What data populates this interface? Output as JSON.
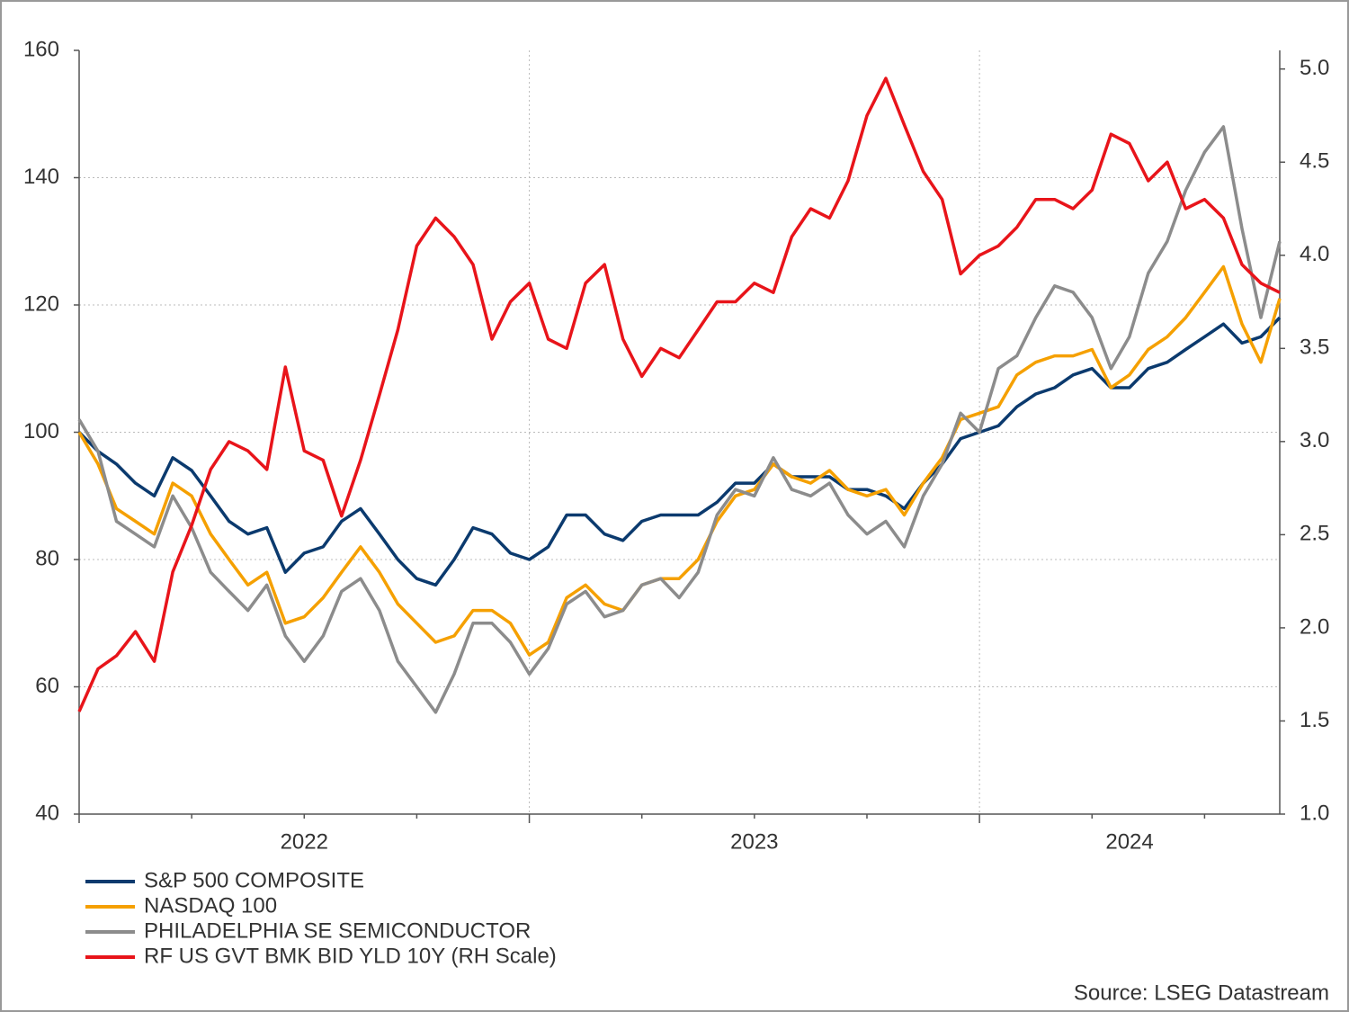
{
  "chart_data": {
    "type": "line",
    "x": [
      2022,
      2022.042,
      2022.083,
      2022.125,
      2022.167,
      2022.208,
      2022.25,
      2022.292,
      2022.333,
      2022.375,
      2022.417,
      2022.458,
      2022.5,
      2022.542,
      2022.583,
      2022.625,
      2022.667,
      2022.708,
      2022.75,
      2022.792,
      2022.833,
      2022.875,
      2022.917,
      2022.958,
      2023,
      2023.042,
      2023.083,
      2023.125,
      2023.167,
      2023.208,
      2023.25,
      2023.292,
      2023.333,
      2023.375,
      2023.417,
      2023.458,
      2023.5,
      2023.542,
      2023.583,
      2023.625,
      2023.667,
      2023.708,
      2023.75,
      2023.792,
      2023.833,
      2023.875,
      2023.917,
      2023.958,
      2024,
      2024.042,
      2024.083,
      2024.125,
      2024.167,
      2024.208,
      2024.25,
      2024.292,
      2024.333,
      2024.375,
      2024.417,
      2024.458,
      2024.5,
      2024.542,
      2024.583,
      2024.625,
      2024.667
    ],
    "xlim": [
      2022,
      2024.667
    ],
    "xticks": [
      {
        "value": 2022,
        "label": "2022"
      },
      {
        "value": 2023,
        "label": "2023"
      },
      {
        "value": 2024,
        "label": "2024"
      }
    ],
    "xminorticks": [
      2022.25,
      2022.5,
      2022.75,
      2023.25,
      2023.5,
      2023.75,
      2024.25,
      2024.5
    ],
    "ylim": [
      40,
      160
    ],
    "yticks": [
      40,
      60,
      80,
      100,
      120,
      140,
      160
    ],
    "y2lim": [
      1.0,
      5.1
    ],
    "y2ticks": [
      {
        "value": 1,
        "label": "1.0"
      },
      1.5,
      {
        "value": 2,
        "label": "2.0"
      },
      2.5,
      {
        "value": 3,
        "label": "3.0"
      },
      3.5,
      {
        "value": 4,
        "label": "4.0"
      },
      4.5,
      {
        "value": 5,
        "label": "5.0"
      }
    ],
    "grid": true,
    "series": [
      {
        "name": "S&P 500 COMPOSITE",
        "color": "#0b3a6e",
        "values": [
          100,
          97,
          95,
          92,
          90,
          96,
          94,
          90,
          86,
          84,
          85,
          78,
          81,
          82,
          86,
          88,
          84,
          80,
          77,
          76,
          80,
          85,
          84,
          81,
          80,
          82,
          87,
          87,
          84,
          83,
          86,
          87,
          87,
          87,
          89,
          92,
          92,
          95,
          93,
          93,
          93,
          91,
          91,
          90,
          88,
          92,
          95,
          99,
          100,
          101,
          104,
          106,
          107,
          109,
          110,
          107,
          107,
          110,
          111,
          113,
          115,
          117,
          114,
          115,
          118
        ]
      },
      {
        "name": "NASDAQ 100",
        "color": "#f5a000",
        "values": [
          100,
          95,
          88,
          86,
          84,
          92,
          90,
          84,
          80,
          76,
          78,
          70,
          71,
          74,
          78,
          82,
          78,
          73,
          70,
          67,
          68,
          72,
          72,
          70,
          65,
          67,
          74,
          76,
          73,
          72,
          76,
          77,
          77,
          80,
          86,
          90,
          91,
          95,
          93,
          92,
          94,
          91,
          90,
          91,
          87,
          92,
          96,
          102,
          103,
          104,
          109,
          111,
          112,
          112,
          113,
          107,
          109,
          113,
          115,
          118,
          122,
          126,
          117,
          111,
          121
        ]
      },
      {
        "name": "PHILADELPHIA SE SEMICONDUCTOR",
        "color": "#8c8c8c",
        "values": [
          102,
          97,
          86,
          84,
          82,
          90,
          85,
          78,
          75,
          72,
          76,
          68,
          64,
          68,
          75,
          77,
          72,
          64,
          60,
          56,
          62,
          70,
          70,
          67,
          62,
          66,
          73,
          75,
          71,
          72,
          76,
          77,
          74,
          78,
          87,
          91,
          90,
          96,
          91,
          90,
          92,
          87,
          84,
          86,
          82,
          90,
          95,
          103,
          100,
          110,
          112,
          118,
          123,
          122,
          118,
          110,
          115,
          125,
          130,
          138,
          144,
          148,
          132,
          118,
          130
        ]
      },
      {
        "name": "RF US GVT BMK BID YLD 10Y (RH Scale)",
        "color": "#e8141a",
        "axis": "y2",
        "values": [
          1.55,
          1.78,
          1.85,
          1.98,
          1.82,
          2.3,
          2.55,
          2.85,
          3.0,
          2.95,
          2.85,
          3.4,
          2.95,
          2.9,
          2.6,
          2.9,
          3.25,
          3.6,
          4.05,
          4.2,
          4.1,
          3.95,
          3.55,
          3.75,
          3.85,
          3.55,
          3.5,
          3.85,
          3.95,
          3.55,
          3.35,
          3.5,
          3.45,
          3.6,
          3.75,
          3.75,
          3.85,
          3.8,
          4.1,
          4.25,
          4.2,
          4.4,
          4.75,
          4.95,
          4.7,
          4.45,
          4.3,
          3.9,
          4.0,
          4.05,
          4.15,
          4.3,
          4.3,
          4.25,
          4.35,
          4.65,
          4.6,
          4.4,
          4.5,
          4.25,
          4.3,
          4.2,
          3.95,
          3.85,
          3.8
        ]
      }
    ],
    "source": "Source: LSEG Datastream"
  }
}
